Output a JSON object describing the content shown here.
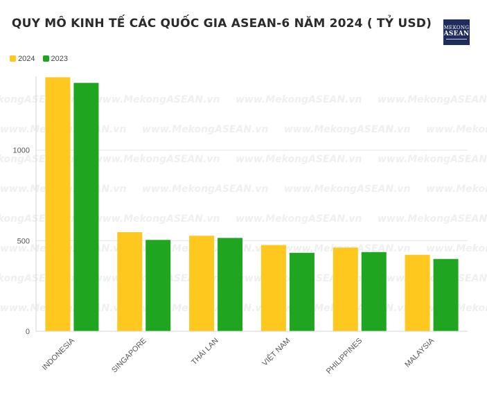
{
  "title": "QUY MÔ KINH TẾ CÁC QUỐC GIA ASEAN-6 NĂM 2024 ( TỶ USD)",
  "logo": {
    "line1": "MEKONG",
    "line2": "ASEAN"
  },
  "watermark": "www.MekongASEAN.vn",
  "colors": {
    "2024": "#fec81e",
    "2023": "#1fa51f"
  },
  "chart_data": {
    "type": "bar",
    "title": "QUY MÔ KINH TẾ CÁC QUỐC GIA ASEAN-6 NĂM 2024 ( TỶ USD)",
    "categories": [
      "INDONESIA",
      "SINGAPORE",
      "THÁI LAN",
      "VIỆT NAM",
      "PHILIPPINES",
      "MALAYSIA"
    ],
    "series": [
      {
        "name": "2024",
        "values": [
          1402,
          547,
          527,
          476,
          462,
          422
        ]
      },
      {
        "name": "2023",
        "values": [
          1371,
          504,
          515,
          433,
          437,
          399
        ]
      }
    ],
    "yticks": [
      0,
      500,
      1000
    ],
    "ylim": [
      0,
      1400
    ],
    "grid": true,
    "legend": "top-left",
    "xlabel": "",
    "ylabel": ""
  }
}
